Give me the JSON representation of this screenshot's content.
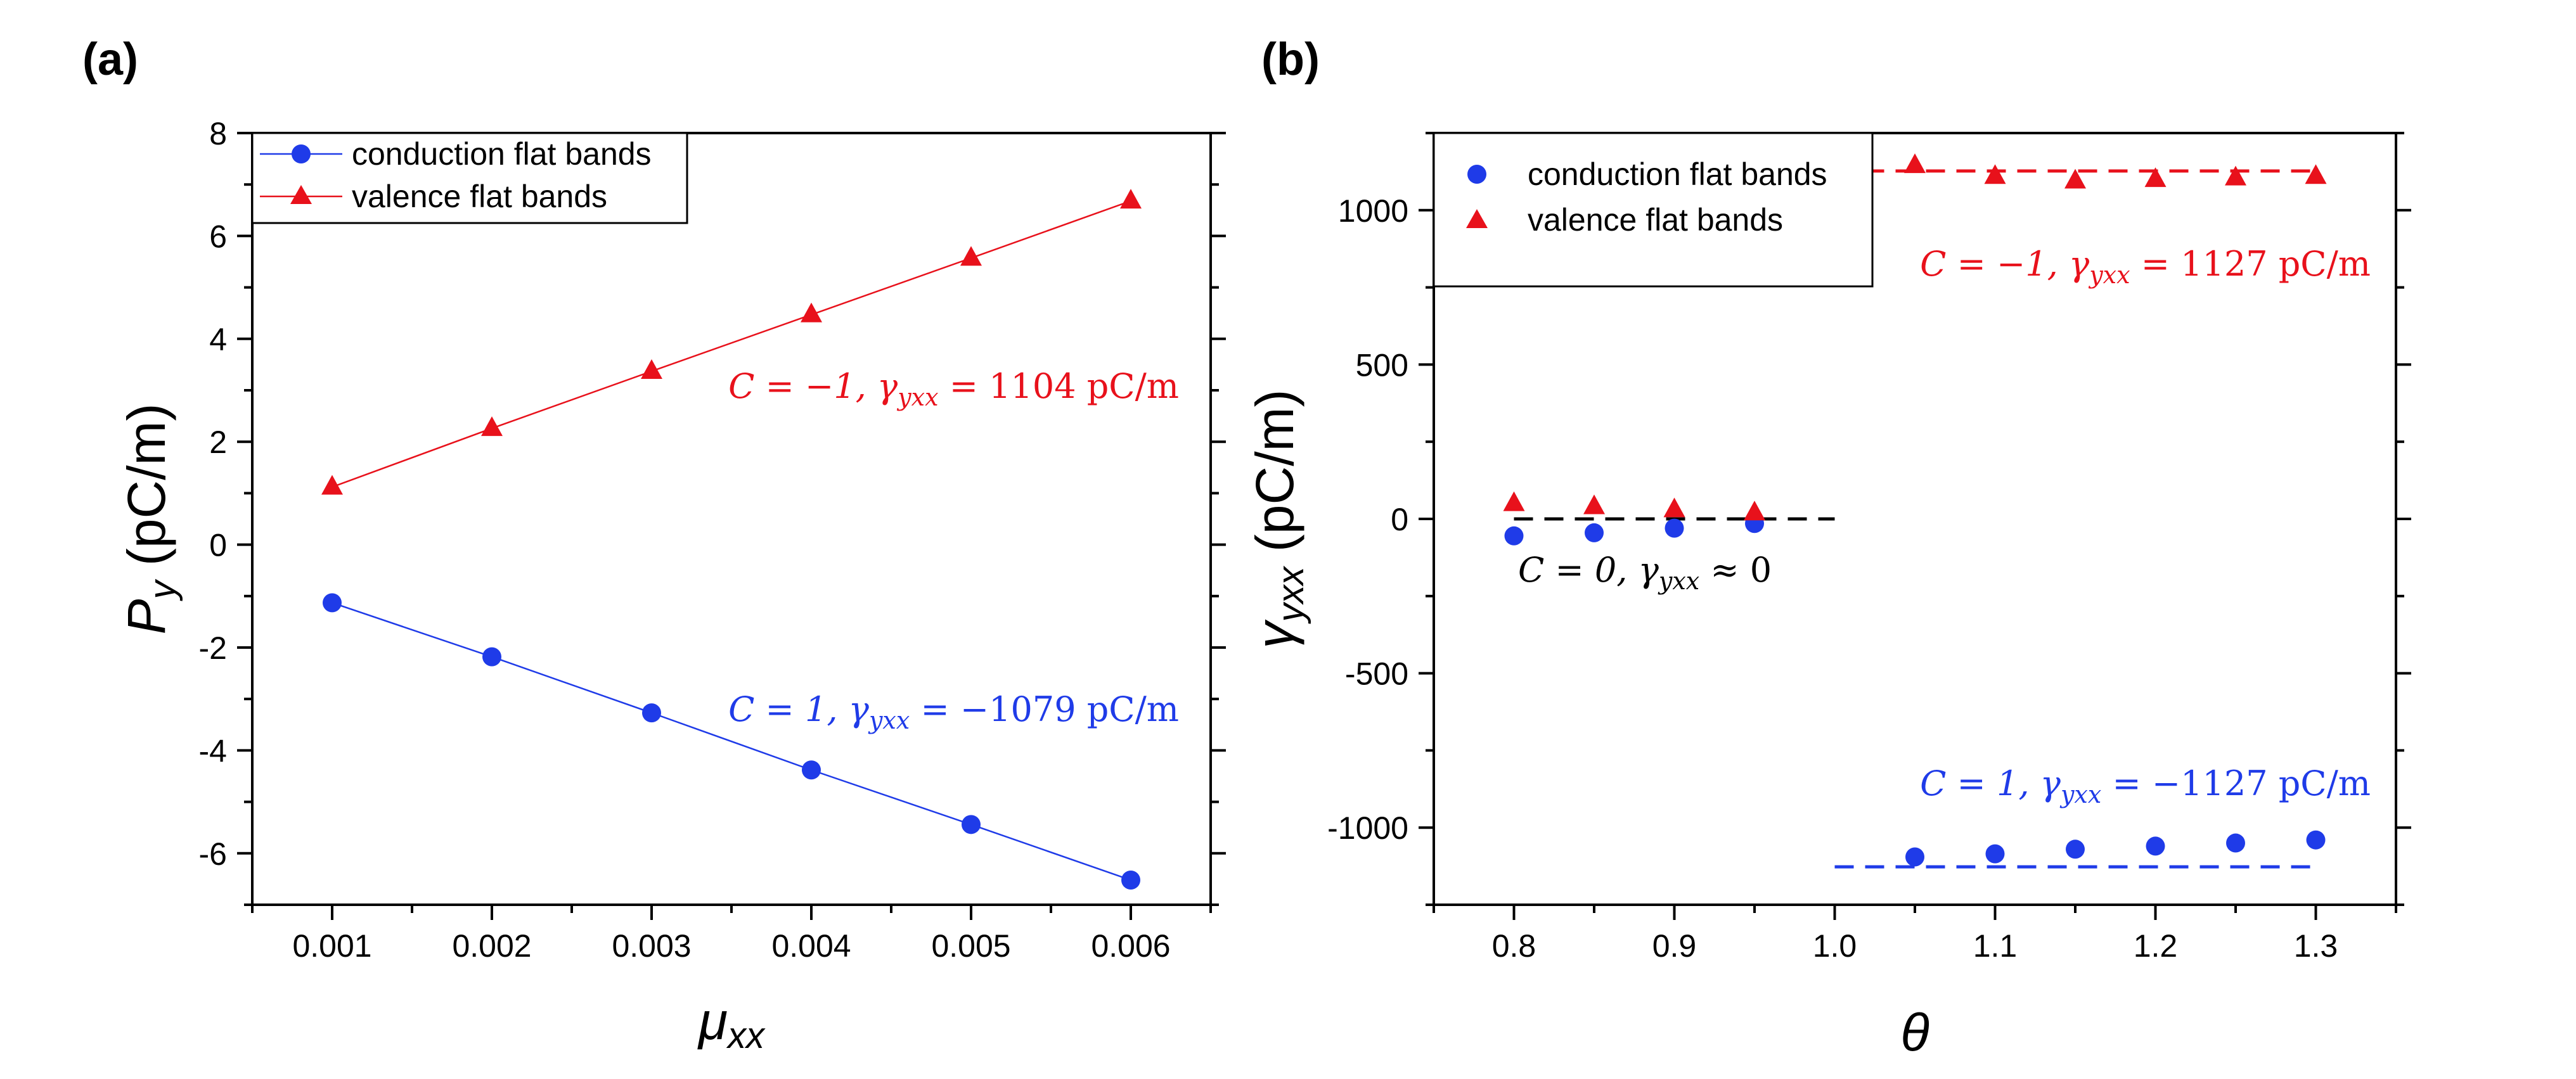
{
  "chart_data": [
    {
      "panel_label": "(a)",
      "type": "line",
      "xlabel": "μ",
      "xlabel_sub": "xx",
      "ylabel": "P",
      "ylabel_sub": "y",
      "ylabel_unit": " (pC/m)",
      "xlim": [
        0.0005,
        0.0065
      ],
      "ylim": [
        -7,
        8
      ],
      "xticks": [
        0.001,
        0.002,
        0.003,
        0.004,
        0.005,
        0.006
      ],
      "xtick_labels": [
        "0.001",
        "0.002",
        "0.003",
        "0.004",
        "0.005",
        "0.006"
      ],
      "yticks": [
        -6,
        -4,
        -2,
        0,
        2,
        4,
        6,
        8
      ],
      "ytick_labels": [
        "-6",
        "-4",
        "-2",
        "0",
        "2",
        "4",
        "6",
        "8"
      ],
      "legend": [
        "conduction flat bands",
        "valence flat bands"
      ],
      "series": [
        {
          "name": "conduction flat bands",
          "color": "#1f3be8",
          "marker": "circle",
          "x": [
            0.001,
            0.002,
            0.003,
            0.004,
            0.005,
            0.006
          ],
          "y": [
            -1.13,
            -2.18,
            -3.27,
            -4.38,
            -5.44,
            -6.52
          ]
        },
        {
          "name": "valence flat bands",
          "color": "#e8111b",
          "marker": "triangle",
          "x": [
            0.001,
            0.002,
            0.003,
            0.004,
            0.005,
            0.006
          ],
          "y": [
            1.12,
            2.26,
            3.37,
            4.47,
            5.57,
            6.68
          ]
        }
      ],
      "annotations": [
        {
          "text_c": "C = −1, ",
          "text_g": "γ",
          "text_sub": "yxx",
          "text_val": " = 1104 pC/m",
          "color": "#e8111b",
          "x": 0.0032,
          "y": 2.75
        },
        {
          "text_c": "C = 1, ",
          "text_g": "γ",
          "text_sub": "yxx",
          "text_val": " = −1079 pC/m",
          "color": "#1f3be8",
          "x": 0.0032,
          "y": -3.5
        }
      ]
    },
    {
      "panel_label": "(b)",
      "type": "scatter",
      "xlabel": "θ",
      "ylabel": "γ",
      "ylabel_sub": "yxx",
      "ylabel_unit": " (pC/m)",
      "xlim": [
        0.75,
        1.35
      ],
      "ylim": [
        -1250,
        1250
      ],
      "xticks": [
        0.8,
        0.9,
        1.0,
        1.1,
        1.2,
        1.3
      ],
      "xtick_labels": [
        "0.8",
        "0.9",
        "1.0",
        "1.1",
        "1.2",
        "1.3"
      ],
      "yticks": [
        -1000,
        -500,
        0,
        500,
        1000
      ],
      "ytick_labels": [
        "-1000",
        "-500",
        "0",
        "500",
        "1000"
      ],
      "legend": [
        "conduction flat bands",
        "valence flat bands"
      ],
      "series": [
        {
          "name": "conduction flat bands",
          "color": "#1f3be8",
          "marker": "circle",
          "x": [
            0.8,
            0.85,
            0.9,
            0.95,
            1.05,
            1.1,
            1.15,
            1.2,
            1.25,
            1.3
          ],
          "y": [
            -55,
            -45,
            -30,
            -15,
            -1095,
            -1085,
            -1070,
            -1060,
            -1050,
            -1040
          ]
        },
        {
          "name": "valence flat bands",
          "color": "#e8111b",
          "marker": "triangle",
          "x": [
            0.8,
            0.85,
            0.9,
            0.95,
            1.05,
            1.1,
            1.15,
            1.2,
            1.25,
            1.3
          ],
          "y": [
            50,
            40,
            30,
            20,
            1145,
            1110,
            1095,
            1100,
            1105,
            1110
          ]
        }
      ],
      "reference_lines": [
        {
          "x": [
            0.8,
            1.0
          ],
          "y": 0,
          "color": "#000000"
        },
        {
          "x": [
            1.0,
            1.3
          ],
          "y": 1127,
          "color": "#e8111b"
        },
        {
          "x": [
            1.0,
            1.3
          ],
          "y": -1127,
          "color": "#1f3be8"
        }
      ],
      "annotations": [
        {
          "text_c": "C = −1, ",
          "text_g": "γ",
          "text_sub": "yxx",
          "text_val": " = 1127 pC/m",
          "color": "#e8111b",
          "x": 1.345,
          "y": 880
        },
        {
          "text_c": "C = 0, ",
          "text_g": "γ",
          "text_sub": "yxx",
          "text_val": " ≈ 0",
          "color": "#000000",
          "x": 0.8,
          "y": -180
        },
        {
          "text_c": "C = 1, ",
          "text_g": "γ",
          "text_sub": "yxx",
          "text_val": " = −1127 pC/m",
          "color": "#1f3be8",
          "x": 1.345,
          "y": -880
        }
      ]
    }
  ]
}
